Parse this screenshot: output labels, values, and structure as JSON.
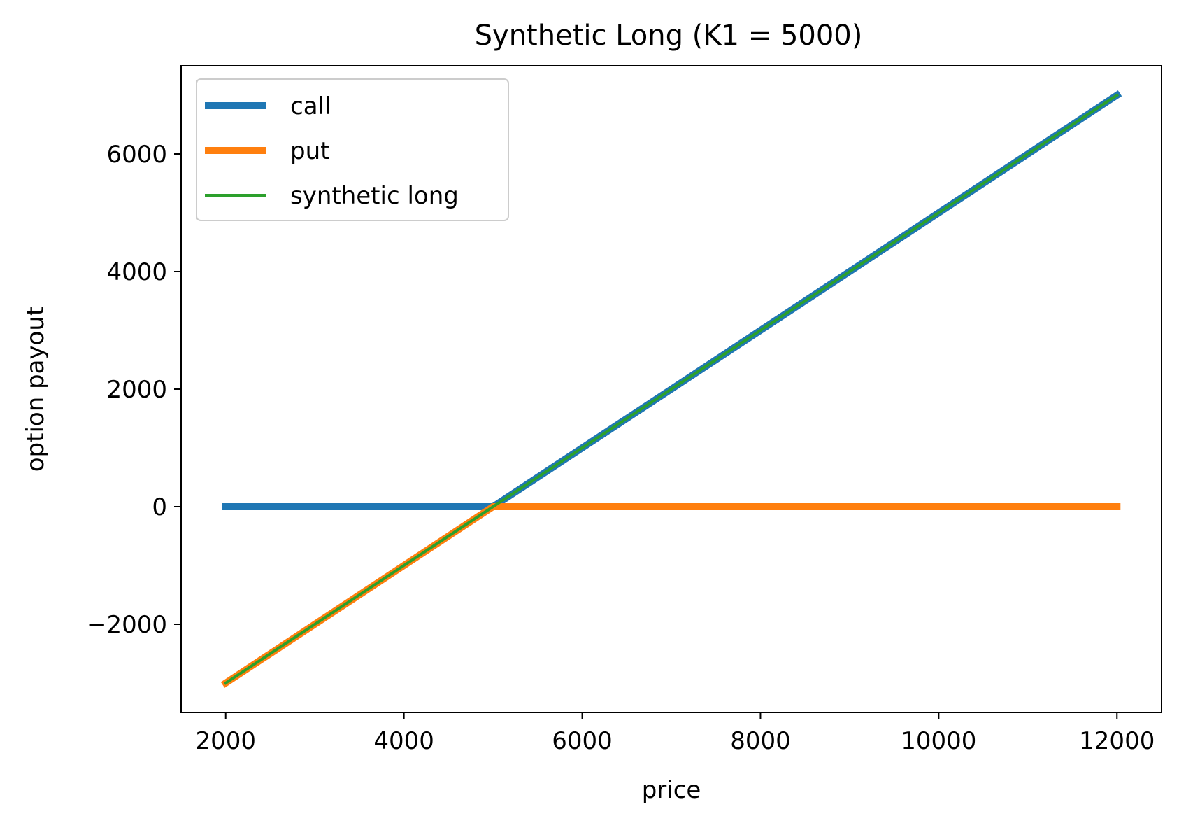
{
  "chart_data": {
    "type": "line",
    "title": "Synthetic Long (K1 = 5000)",
    "xlabel": "price",
    "ylabel": "option payout",
    "xlim": [
      1500,
      12500
    ],
    "ylim": [
      -3500,
      7500
    ],
    "xticks": [
      2000,
      4000,
      6000,
      8000,
      10000,
      12000
    ],
    "yticks": [
      -2000,
      0,
      2000,
      4000,
      6000
    ],
    "ytick_labels": [
      "−2000",
      "0",
      "2000",
      "4000",
      "6000"
    ],
    "grid": false,
    "legend_position": "top-left",
    "series": [
      {
        "name": "call",
        "color": "#1f77b4",
        "style": "thick",
        "x": [
          2000,
          5000,
          12000
        ],
        "y": [
          0,
          0,
          7000
        ]
      },
      {
        "name": "put",
        "color": "#ff7f0e",
        "style": "thick",
        "x": [
          2000,
          5000,
          12000
        ],
        "y": [
          -3000,
          0,
          0
        ]
      },
      {
        "name": "synthetic long",
        "color": "#2ca02c",
        "style": "thin",
        "x": [
          2000,
          12000
        ],
        "y": [
          -3000,
          7000
        ]
      }
    ]
  }
}
